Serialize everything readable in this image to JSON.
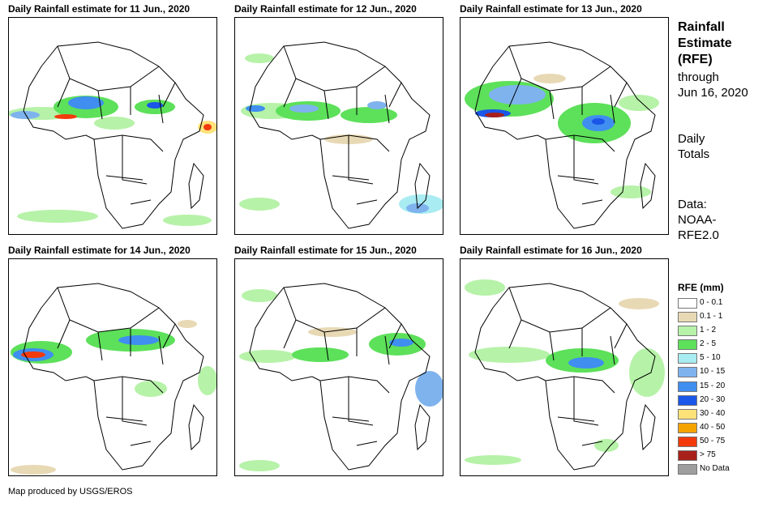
{
  "panels": [
    {
      "title": "Daily Rainfall estimate for 11 Jun., 2020"
    },
    {
      "title": "Daily Rainfall estimate for 12 Jun., 2020"
    },
    {
      "title": "Daily Rainfall estimate for 13 Jun., 2020"
    },
    {
      "title": "Daily Rainfall estimate for 14 Jun., 2020"
    },
    {
      "title": "Daily Rainfall estimate for 15 Jun., 2020"
    },
    {
      "title": "Daily Rainfall estimate for 16 Jun., 2020"
    }
  ],
  "side": {
    "title_line1": "Rainfall",
    "title_line2": "Estimate",
    "title_line3": "(RFE)",
    "through": "through",
    "date": "Jun 16, 2020",
    "daily": "Daily",
    "totals": "Totals",
    "data_label": "Data:",
    "data_src1": "NOAA-",
    "data_src2": "RFE2.0"
  },
  "legend": {
    "title": "RFE (mm)",
    "items": [
      {
        "label": "0 - 0.1",
        "color": "#ffffff"
      },
      {
        "label": "0.1 - 1",
        "color": "#e8d9b5"
      },
      {
        "label": "1 - 2",
        "color": "#b6f2a8"
      },
      {
        "label": "2 - 5",
        "color": "#5de05a"
      },
      {
        "label": "5 - 10",
        "color": "#a9ecf2"
      },
      {
        "label": "10 - 15",
        "color": "#7fb3ee"
      },
      {
        "label": "15 - 20",
        "color": "#3f8ef0"
      },
      {
        "label": "20 - 30",
        "color": "#1a56e8"
      },
      {
        "label": "30 - 40",
        "color": "#fde27a"
      },
      {
        "label": "40 - 50",
        "color": "#f5a300"
      },
      {
        "label": "50 - 75",
        "color": "#f23a0c"
      },
      {
        "label": "> 75",
        "color": "#a8201a"
      },
      {
        "label": "No Data",
        "color": "#9e9e9e"
      }
    ]
  },
  "credit": "Map produced by USGS/EROS"
}
